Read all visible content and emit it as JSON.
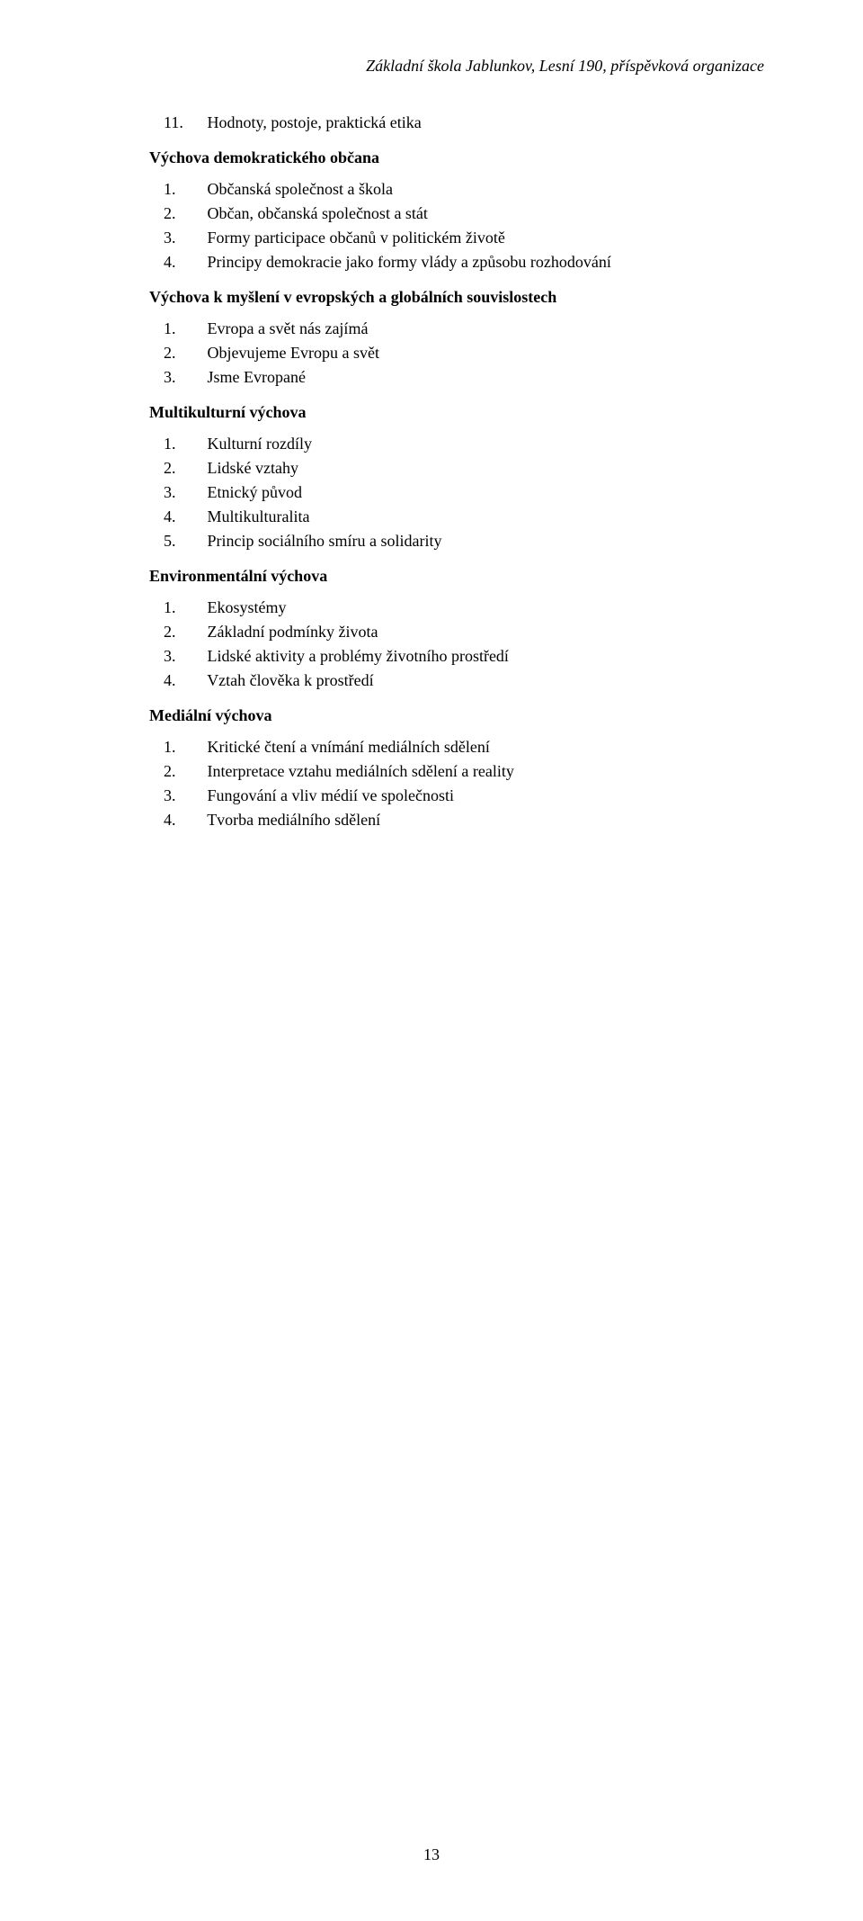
{
  "header": {
    "institution": "Základní škola Jablunkov, Lesní 190, příspěvková organizace"
  },
  "sections": [
    {
      "leading_item": {
        "num": "11.",
        "text": "Hodnoty, postoje, praktická etika"
      },
      "heading": "Výchova demokratického občana",
      "items": [
        {
          "num": "1.",
          "text": "Občanská společnost a škola"
        },
        {
          "num": "2.",
          "text": "Občan, občanská společnost a stát"
        },
        {
          "num": "3.",
          "text": "Formy participace občanů v politickém životě"
        },
        {
          "num": "4.",
          "text": "Principy demokracie jako formy vlády a způsobu rozhodování"
        }
      ]
    },
    {
      "heading": "Výchova k myšlení v evropských a globálních souvislostech",
      "items": [
        {
          "num": "1.",
          "text": "Evropa a svět nás zajímá"
        },
        {
          "num": "2.",
          "text": "Objevujeme Evropu a svět"
        },
        {
          "num": "3.",
          "text": "Jsme Evropané"
        }
      ]
    },
    {
      "heading": "Multikulturní výchova",
      "items": [
        {
          "num": "1.",
          "text": "Kulturní rozdíly"
        },
        {
          "num": "2.",
          "text": "Lidské vztahy"
        },
        {
          "num": "3.",
          "text": "Etnický původ"
        },
        {
          "num": "4.",
          "text": "Multikulturalita"
        },
        {
          "num": "5.",
          "text": "Princip sociálního smíru a solidarity"
        }
      ]
    },
    {
      "heading": "Environmentální výchova",
      "items": [
        {
          "num": "1.",
          "text": "Ekosystémy"
        },
        {
          "num": "2.",
          "text": "Základní podmínky života"
        },
        {
          "num": "3.",
          "text": "Lidské aktivity a problémy životního prostředí"
        },
        {
          "num": "4.",
          "text": "Vztah člověka k prostředí"
        }
      ]
    },
    {
      "heading": "Mediální výchova",
      "items": [
        {
          "num": "1.",
          "text": "Kritické čtení a vnímání mediálních sdělení"
        },
        {
          "num": "2.",
          "text": "Interpretace vztahu mediálních sdělení a reality"
        },
        {
          "num": "3.",
          "text": "Fungování a vliv médií ve společnosti"
        },
        {
          "num": "4.",
          "text": "Tvorba mediálního sdělení"
        }
      ]
    }
  ],
  "page_number": "13"
}
